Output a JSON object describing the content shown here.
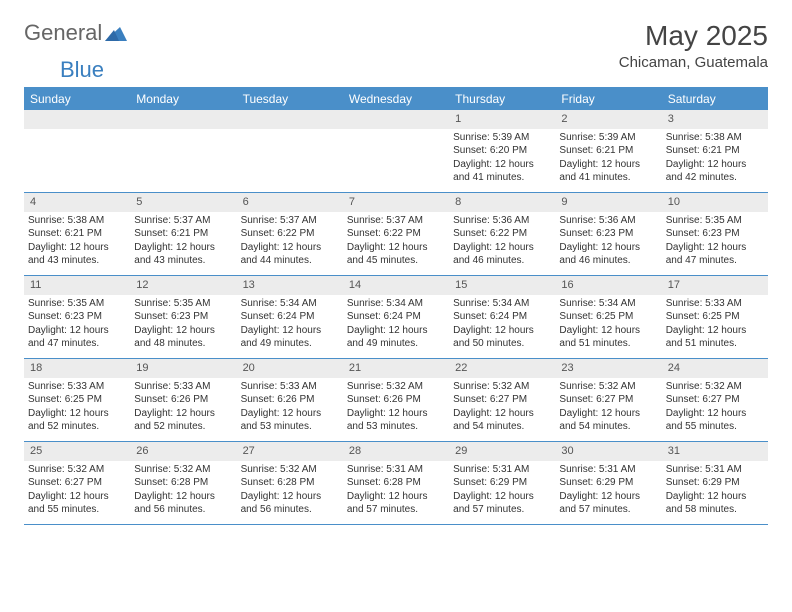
{
  "brand": {
    "part1": "General",
    "part2": "Blue"
  },
  "title": "May 2025",
  "location": "Chicaman, Guatemala",
  "colors": {
    "header_bg": "#4a8fc9",
    "header_text": "#ffffff",
    "daynum_bg": "#ececec",
    "text": "#333333",
    "border": "#4a8fc9"
  },
  "weekdays": [
    "Sunday",
    "Monday",
    "Tuesday",
    "Wednesday",
    "Thursday",
    "Friday",
    "Saturday"
  ],
  "weeks": [
    [
      {
        "n": "",
        "sunrise": "",
        "sunset": "",
        "daylight": ""
      },
      {
        "n": "",
        "sunrise": "",
        "sunset": "",
        "daylight": ""
      },
      {
        "n": "",
        "sunrise": "",
        "sunset": "",
        "daylight": ""
      },
      {
        "n": "",
        "sunrise": "",
        "sunset": "",
        "daylight": ""
      },
      {
        "n": "1",
        "sunrise": "Sunrise: 5:39 AM",
        "sunset": "Sunset: 6:20 PM",
        "daylight": "Daylight: 12 hours and 41 minutes."
      },
      {
        "n": "2",
        "sunrise": "Sunrise: 5:39 AM",
        "sunset": "Sunset: 6:21 PM",
        "daylight": "Daylight: 12 hours and 41 minutes."
      },
      {
        "n": "3",
        "sunrise": "Sunrise: 5:38 AM",
        "sunset": "Sunset: 6:21 PM",
        "daylight": "Daylight: 12 hours and 42 minutes."
      }
    ],
    [
      {
        "n": "4",
        "sunrise": "Sunrise: 5:38 AM",
        "sunset": "Sunset: 6:21 PM",
        "daylight": "Daylight: 12 hours and 43 minutes."
      },
      {
        "n": "5",
        "sunrise": "Sunrise: 5:37 AM",
        "sunset": "Sunset: 6:21 PM",
        "daylight": "Daylight: 12 hours and 43 minutes."
      },
      {
        "n": "6",
        "sunrise": "Sunrise: 5:37 AM",
        "sunset": "Sunset: 6:22 PM",
        "daylight": "Daylight: 12 hours and 44 minutes."
      },
      {
        "n": "7",
        "sunrise": "Sunrise: 5:37 AM",
        "sunset": "Sunset: 6:22 PM",
        "daylight": "Daylight: 12 hours and 45 minutes."
      },
      {
        "n": "8",
        "sunrise": "Sunrise: 5:36 AM",
        "sunset": "Sunset: 6:22 PM",
        "daylight": "Daylight: 12 hours and 46 minutes."
      },
      {
        "n": "9",
        "sunrise": "Sunrise: 5:36 AM",
        "sunset": "Sunset: 6:23 PM",
        "daylight": "Daylight: 12 hours and 46 minutes."
      },
      {
        "n": "10",
        "sunrise": "Sunrise: 5:35 AM",
        "sunset": "Sunset: 6:23 PM",
        "daylight": "Daylight: 12 hours and 47 minutes."
      }
    ],
    [
      {
        "n": "11",
        "sunrise": "Sunrise: 5:35 AM",
        "sunset": "Sunset: 6:23 PM",
        "daylight": "Daylight: 12 hours and 47 minutes."
      },
      {
        "n": "12",
        "sunrise": "Sunrise: 5:35 AM",
        "sunset": "Sunset: 6:23 PM",
        "daylight": "Daylight: 12 hours and 48 minutes."
      },
      {
        "n": "13",
        "sunrise": "Sunrise: 5:34 AM",
        "sunset": "Sunset: 6:24 PM",
        "daylight": "Daylight: 12 hours and 49 minutes."
      },
      {
        "n": "14",
        "sunrise": "Sunrise: 5:34 AM",
        "sunset": "Sunset: 6:24 PM",
        "daylight": "Daylight: 12 hours and 49 minutes."
      },
      {
        "n": "15",
        "sunrise": "Sunrise: 5:34 AM",
        "sunset": "Sunset: 6:24 PM",
        "daylight": "Daylight: 12 hours and 50 minutes."
      },
      {
        "n": "16",
        "sunrise": "Sunrise: 5:34 AM",
        "sunset": "Sunset: 6:25 PM",
        "daylight": "Daylight: 12 hours and 51 minutes."
      },
      {
        "n": "17",
        "sunrise": "Sunrise: 5:33 AM",
        "sunset": "Sunset: 6:25 PM",
        "daylight": "Daylight: 12 hours and 51 minutes."
      }
    ],
    [
      {
        "n": "18",
        "sunrise": "Sunrise: 5:33 AM",
        "sunset": "Sunset: 6:25 PM",
        "daylight": "Daylight: 12 hours and 52 minutes."
      },
      {
        "n": "19",
        "sunrise": "Sunrise: 5:33 AM",
        "sunset": "Sunset: 6:26 PM",
        "daylight": "Daylight: 12 hours and 52 minutes."
      },
      {
        "n": "20",
        "sunrise": "Sunrise: 5:33 AM",
        "sunset": "Sunset: 6:26 PM",
        "daylight": "Daylight: 12 hours and 53 minutes."
      },
      {
        "n": "21",
        "sunrise": "Sunrise: 5:32 AM",
        "sunset": "Sunset: 6:26 PM",
        "daylight": "Daylight: 12 hours and 53 minutes."
      },
      {
        "n": "22",
        "sunrise": "Sunrise: 5:32 AM",
        "sunset": "Sunset: 6:27 PM",
        "daylight": "Daylight: 12 hours and 54 minutes."
      },
      {
        "n": "23",
        "sunrise": "Sunrise: 5:32 AM",
        "sunset": "Sunset: 6:27 PM",
        "daylight": "Daylight: 12 hours and 54 minutes."
      },
      {
        "n": "24",
        "sunrise": "Sunrise: 5:32 AM",
        "sunset": "Sunset: 6:27 PM",
        "daylight": "Daylight: 12 hours and 55 minutes."
      }
    ],
    [
      {
        "n": "25",
        "sunrise": "Sunrise: 5:32 AM",
        "sunset": "Sunset: 6:27 PM",
        "daylight": "Daylight: 12 hours and 55 minutes."
      },
      {
        "n": "26",
        "sunrise": "Sunrise: 5:32 AM",
        "sunset": "Sunset: 6:28 PM",
        "daylight": "Daylight: 12 hours and 56 minutes."
      },
      {
        "n": "27",
        "sunrise": "Sunrise: 5:32 AM",
        "sunset": "Sunset: 6:28 PM",
        "daylight": "Daylight: 12 hours and 56 minutes."
      },
      {
        "n": "28",
        "sunrise": "Sunrise: 5:31 AM",
        "sunset": "Sunset: 6:28 PM",
        "daylight": "Daylight: 12 hours and 57 minutes."
      },
      {
        "n": "29",
        "sunrise": "Sunrise: 5:31 AM",
        "sunset": "Sunset: 6:29 PM",
        "daylight": "Daylight: 12 hours and 57 minutes."
      },
      {
        "n": "30",
        "sunrise": "Sunrise: 5:31 AM",
        "sunset": "Sunset: 6:29 PM",
        "daylight": "Daylight: 12 hours and 57 minutes."
      },
      {
        "n": "31",
        "sunrise": "Sunrise: 5:31 AM",
        "sunset": "Sunset: 6:29 PM",
        "daylight": "Daylight: 12 hours and 58 minutes."
      }
    ]
  ]
}
